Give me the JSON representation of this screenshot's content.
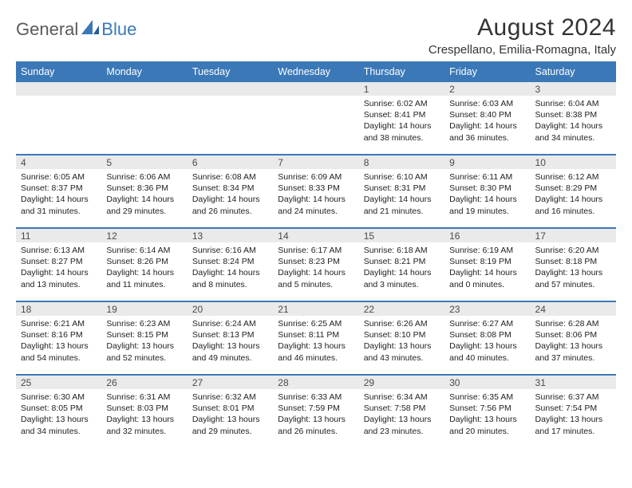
{
  "brand": {
    "part1": "General",
    "part2": "Blue"
  },
  "title": "August 2024",
  "location": "Crespellano, Emilia-Romagna, Italy",
  "colors": {
    "header_bg": "#3b78b8",
    "header_text": "#ffffff",
    "daynum_bg": "#eaeaea",
    "text": "#222222",
    "brand_gray": "#5a5a5a",
    "brand_blue": "#3b78b8"
  },
  "dayHeaders": [
    "Sunday",
    "Monday",
    "Tuesday",
    "Wednesday",
    "Thursday",
    "Friday",
    "Saturday"
  ],
  "weeks": [
    [
      {
        "n": "",
        "sr": "",
        "ss": "",
        "dl": ""
      },
      {
        "n": "",
        "sr": "",
        "ss": "",
        "dl": ""
      },
      {
        "n": "",
        "sr": "",
        "ss": "",
        "dl": ""
      },
      {
        "n": "",
        "sr": "",
        "ss": "",
        "dl": ""
      },
      {
        "n": "1",
        "sr": "Sunrise: 6:02 AM",
        "ss": "Sunset: 8:41 PM",
        "dl": "Daylight: 14 hours and 38 minutes."
      },
      {
        "n": "2",
        "sr": "Sunrise: 6:03 AM",
        "ss": "Sunset: 8:40 PM",
        "dl": "Daylight: 14 hours and 36 minutes."
      },
      {
        "n": "3",
        "sr": "Sunrise: 6:04 AM",
        "ss": "Sunset: 8:38 PM",
        "dl": "Daylight: 14 hours and 34 minutes."
      }
    ],
    [
      {
        "n": "4",
        "sr": "Sunrise: 6:05 AM",
        "ss": "Sunset: 8:37 PM",
        "dl": "Daylight: 14 hours and 31 minutes."
      },
      {
        "n": "5",
        "sr": "Sunrise: 6:06 AM",
        "ss": "Sunset: 8:36 PM",
        "dl": "Daylight: 14 hours and 29 minutes."
      },
      {
        "n": "6",
        "sr": "Sunrise: 6:08 AM",
        "ss": "Sunset: 8:34 PM",
        "dl": "Daylight: 14 hours and 26 minutes."
      },
      {
        "n": "7",
        "sr": "Sunrise: 6:09 AM",
        "ss": "Sunset: 8:33 PM",
        "dl": "Daylight: 14 hours and 24 minutes."
      },
      {
        "n": "8",
        "sr": "Sunrise: 6:10 AM",
        "ss": "Sunset: 8:31 PM",
        "dl": "Daylight: 14 hours and 21 minutes."
      },
      {
        "n": "9",
        "sr": "Sunrise: 6:11 AM",
        "ss": "Sunset: 8:30 PM",
        "dl": "Daylight: 14 hours and 19 minutes."
      },
      {
        "n": "10",
        "sr": "Sunrise: 6:12 AM",
        "ss": "Sunset: 8:29 PM",
        "dl": "Daylight: 14 hours and 16 minutes."
      }
    ],
    [
      {
        "n": "11",
        "sr": "Sunrise: 6:13 AM",
        "ss": "Sunset: 8:27 PM",
        "dl": "Daylight: 14 hours and 13 minutes."
      },
      {
        "n": "12",
        "sr": "Sunrise: 6:14 AM",
        "ss": "Sunset: 8:26 PM",
        "dl": "Daylight: 14 hours and 11 minutes."
      },
      {
        "n": "13",
        "sr": "Sunrise: 6:16 AM",
        "ss": "Sunset: 8:24 PM",
        "dl": "Daylight: 14 hours and 8 minutes."
      },
      {
        "n": "14",
        "sr": "Sunrise: 6:17 AM",
        "ss": "Sunset: 8:23 PM",
        "dl": "Daylight: 14 hours and 5 minutes."
      },
      {
        "n": "15",
        "sr": "Sunrise: 6:18 AM",
        "ss": "Sunset: 8:21 PM",
        "dl": "Daylight: 14 hours and 3 minutes."
      },
      {
        "n": "16",
        "sr": "Sunrise: 6:19 AM",
        "ss": "Sunset: 8:19 PM",
        "dl": "Daylight: 14 hours and 0 minutes."
      },
      {
        "n": "17",
        "sr": "Sunrise: 6:20 AM",
        "ss": "Sunset: 8:18 PM",
        "dl": "Daylight: 13 hours and 57 minutes."
      }
    ],
    [
      {
        "n": "18",
        "sr": "Sunrise: 6:21 AM",
        "ss": "Sunset: 8:16 PM",
        "dl": "Daylight: 13 hours and 54 minutes."
      },
      {
        "n": "19",
        "sr": "Sunrise: 6:23 AM",
        "ss": "Sunset: 8:15 PM",
        "dl": "Daylight: 13 hours and 52 minutes."
      },
      {
        "n": "20",
        "sr": "Sunrise: 6:24 AM",
        "ss": "Sunset: 8:13 PM",
        "dl": "Daylight: 13 hours and 49 minutes."
      },
      {
        "n": "21",
        "sr": "Sunrise: 6:25 AM",
        "ss": "Sunset: 8:11 PM",
        "dl": "Daylight: 13 hours and 46 minutes."
      },
      {
        "n": "22",
        "sr": "Sunrise: 6:26 AM",
        "ss": "Sunset: 8:10 PM",
        "dl": "Daylight: 13 hours and 43 minutes."
      },
      {
        "n": "23",
        "sr": "Sunrise: 6:27 AM",
        "ss": "Sunset: 8:08 PM",
        "dl": "Daylight: 13 hours and 40 minutes."
      },
      {
        "n": "24",
        "sr": "Sunrise: 6:28 AM",
        "ss": "Sunset: 8:06 PM",
        "dl": "Daylight: 13 hours and 37 minutes."
      }
    ],
    [
      {
        "n": "25",
        "sr": "Sunrise: 6:30 AM",
        "ss": "Sunset: 8:05 PM",
        "dl": "Daylight: 13 hours and 34 minutes."
      },
      {
        "n": "26",
        "sr": "Sunrise: 6:31 AM",
        "ss": "Sunset: 8:03 PM",
        "dl": "Daylight: 13 hours and 32 minutes."
      },
      {
        "n": "27",
        "sr": "Sunrise: 6:32 AM",
        "ss": "Sunset: 8:01 PM",
        "dl": "Daylight: 13 hours and 29 minutes."
      },
      {
        "n": "28",
        "sr": "Sunrise: 6:33 AM",
        "ss": "Sunset: 7:59 PM",
        "dl": "Daylight: 13 hours and 26 minutes."
      },
      {
        "n": "29",
        "sr": "Sunrise: 6:34 AM",
        "ss": "Sunset: 7:58 PM",
        "dl": "Daylight: 13 hours and 23 minutes."
      },
      {
        "n": "30",
        "sr": "Sunrise: 6:35 AM",
        "ss": "Sunset: 7:56 PM",
        "dl": "Daylight: 13 hours and 20 minutes."
      },
      {
        "n": "31",
        "sr": "Sunrise: 6:37 AM",
        "ss": "Sunset: 7:54 PM",
        "dl": "Daylight: 13 hours and 17 minutes."
      }
    ]
  ]
}
